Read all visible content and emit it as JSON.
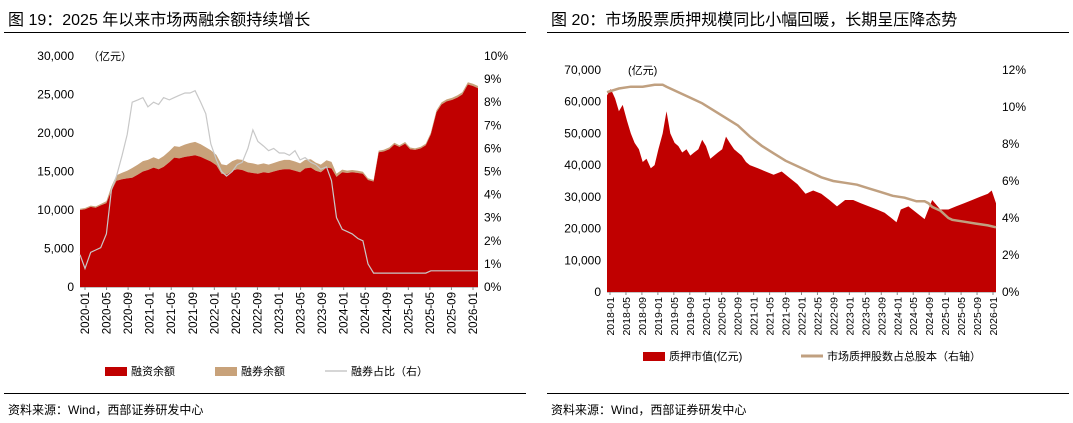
{
  "left": {
    "title": "图 19：2025 年以来市场两融余额持续增长",
    "source": "资料来源：Wind，西部证券研发中心",
    "unit": "（亿元）",
    "legend_margin_finance": "融资余额",
    "legend_short_selling": "融券余额",
    "legend_ratio": "融券占比（右）"
  },
  "right": {
    "title": "图 20：市场股票质押规模同比小幅回暖，长期呈压降态势",
    "source": "资料来源：Wind，西部证券研发中心",
    "unit": "(亿元)",
    "legend_pledge_value": "质押市值(亿元)",
    "legend_pledge_ratio": "市场质押股数占总股本（右轴）"
  },
  "colors": {
    "finance": "#c00000",
    "short": "#c8a27a",
    "ratio_line": "#c8c8c8",
    "pledge_area": "#c00000",
    "pledge_line": "#c0a080"
  },
  "chart_data": [
    {
      "type": "area",
      "title": "图 19：2025 年以来市场两融余额持续增长",
      "ylabel_left": "（亿元）",
      "ylim_left": [
        0,
        30000
      ],
      "yticks_left": [
        0,
        5000,
        10000,
        15000,
        20000,
        25000,
        30000
      ],
      "ytick_labels_left": [
        "0",
        "5,000",
        "10,000",
        "15,000",
        "20,000",
        "25,000",
        "30,000"
      ],
      "ylim_right": [
        0,
        10
      ],
      "yticks_right": [
        0,
        1,
        2,
        3,
        4,
        5,
        6,
        7,
        8,
        9,
        10
      ],
      "ytick_labels_right": [
        "0%",
        "1%",
        "2%",
        "3%",
        "4%",
        "5%",
        "6%",
        "7%",
        "8%",
        "9%",
        "10%"
      ],
      "xlim": [
        2020.0,
        2026.33
      ],
      "x_tick_labels": [
        "2020-01",
        "2020-05",
        "2020-09",
        "2021-01",
        "2021-05",
        "2021-09",
        "2022-01",
        "2022-05",
        "2022-09",
        "2023-01",
        "2023-05",
        "2023-09",
        "2024-01",
        "2024-05",
        "2024-09",
        "2025-01",
        "2025-05",
        "2025-09",
        "2026-01"
      ],
      "legend": [
        "融资余额",
        "融券余额",
        "融券占比（右）"
      ],
      "series": [
        {
          "name": "融资余额",
          "kind": "area",
          "axis": "left",
          "x": [
            2020.0,
            2020.08,
            2020.17,
            2020.25,
            2020.33,
            2020.42,
            2020.5,
            2020.58,
            2020.67,
            2020.75,
            2020.83,
            2020.92,
            2021.0,
            2021.08,
            2021.17,
            2021.25,
            2021.33,
            2021.42,
            2021.5,
            2021.58,
            2021.67,
            2021.75,
            2021.83,
            2021.92,
            2022.0,
            2022.08,
            2022.17,
            2022.25,
            2022.33,
            2022.42,
            2022.5,
            2022.58,
            2022.67,
            2022.75,
            2022.83,
            2022.92,
            2023.0,
            2023.08,
            2023.17,
            2023.25,
            2023.33,
            2023.42,
            2023.5,
            2023.58,
            2023.67,
            2023.75,
            2023.83,
            2023.92,
            2024.0,
            2024.08,
            2024.17,
            2024.25,
            2024.33,
            2024.42,
            2024.5,
            2024.58,
            2024.67,
            2024.75,
            2024.83,
            2024.92,
            2025.0,
            2025.08,
            2025.17,
            2025.25,
            2025.33,
            2025.42,
            2025.5,
            2025.58,
            2025.67,
            2025.75,
            2025.83,
            2025.92,
            2026.0,
            2026.08,
            2026.17,
            2026.25,
            2026.33
          ],
          "values": [
            10000,
            10100,
            10400,
            10300,
            10600,
            10900,
            12500,
            13800,
            14000,
            14100,
            14200,
            14600,
            15000,
            15200,
            15500,
            15300,
            15600,
            16200,
            16800,
            16700,
            16900,
            17000,
            17100,
            16900,
            16600,
            16300,
            15800,
            14700,
            14600,
            15100,
            15300,
            15200,
            14900,
            14800,
            14700,
            14900,
            14800,
            15000,
            15200,
            15300,
            15300,
            15100,
            14900,
            15400,
            15500,
            15100,
            14900,
            15500,
            15400,
            14300,
            14900,
            14800,
            14900,
            14800,
            14700,
            13900,
            13700,
            17500,
            17600,
            17900,
            18500,
            18200,
            18600,
            17900,
            17800,
            18000,
            18400,
            19800,
            22700,
            23700,
            24100,
            24300,
            24600,
            25000,
            26300,
            26100,
            25800
          ]
        },
        {
          "name": "融券余额",
          "kind": "area_stacked",
          "axis": "left",
          "x": [
            2020.0,
            2020.08,
            2020.17,
            2020.25,
            2020.33,
            2020.42,
            2020.5,
            2020.58,
            2020.67,
            2020.75,
            2020.83,
            2020.92,
            2021.0,
            2021.08,
            2021.17,
            2021.25,
            2021.33,
            2021.42,
            2021.5,
            2021.58,
            2021.67,
            2021.75,
            2021.83,
            2021.92,
            2022.0,
            2022.08,
            2022.17,
            2022.25,
            2022.33,
            2022.42,
            2022.5,
            2022.58,
            2022.67,
            2022.75,
            2022.83,
            2022.92,
            2023.0,
            2023.08,
            2023.17,
            2023.25,
            2023.33,
            2023.42,
            2023.5,
            2023.58,
            2023.67,
            2023.75,
            2023.83,
            2023.92,
            2024.0,
            2024.08,
            2024.17,
            2024.25,
            2024.33,
            2024.42,
            2024.5,
            2024.58,
            2024.67,
            2024.75,
            2024.83,
            2024.92,
            2025.0,
            2025.08,
            2025.17,
            2025.25,
            2025.33,
            2025.42,
            2025.5,
            2025.58,
            2025.67,
            2025.75,
            2025.83,
            2025.92,
            2026.0,
            2026.08,
            2026.17,
            2026.25,
            2026.33
          ],
          "values": [
            150,
            160,
            170,
            170,
            180,
            260,
            560,
            700,
            850,
            1000,
            1250,
            1300,
            1350,
            1300,
            1350,
            1300,
            1400,
            1450,
            1500,
            1500,
            1600,
            1700,
            1750,
            1650,
            1550,
            1450,
            1350,
            1250,
            1200,
            1250,
            1300,
            1300,
            1250,
            1250,
            1200,
            1150,
            1100,
            1100,
            1150,
            1200,
            1200,
            1200,
            1150,
            1100,
            1100,
            1050,
            1000,
            950,
            850,
            400,
            350,
            320,
            300,
            290,
            280,
            230,
            200,
            220,
            220,
            230,
            230,
            220,
            230,
            220,
            200,
            210,
            220,
            240,
            260,
            270,
            270,
            280,
            280,
            290,
            300,
            300,
            300
          ]
        },
        {
          "name": "融券占比（右）",
          "kind": "line",
          "axis": "right",
          "x": [
            2020.0,
            2020.08,
            2020.17,
            2020.25,
            2020.33,
            2020.42,
            2020.5,
            2020.58,
            2020.67,
            2020.75,
            2020.83,
            2020.92,
            2021.0,
            2021.08,
            2021.17,
            2021.25,
            2021.33,
            2021.42,
            2021.5,
            2021.58,
            2021.67,
            2021.75,
            2021.83,
            2021.92,
            2022.0,
            2022.08,
            2022.17,
            2022.25,
            2022.33,
            2022.42,
            2022.5,
            2022.58,
            2022.67,
            2022.75,
            2022.83,
            2022.92,
            2023.0,
            2023.08,
            2023.17,
            2023.25,
            2023.33,
            2023.42,
            2023.5,
            2023.58,
            2023.67,
            2023.75,
            2023.83,
            2023.92,
            2024.0,
            2024.08,
            2024.17,
            2024.25,
            2024.33,
            2024.42,
            2024.5,
            2024.58,
            2024.67,
            2024.75,
            2024.83,
            2024.92,
            2025.0,
            2025.08,
            2025.17,
            2025.25,
            2025.33,
            2025.42,
            2025.5,
            2025.58,
            2025.67,
            2025.75,
            2025.83,
            2025.92,
            2026.0,
            2026.08,
            2026.17,
            2026.25,
            2026.33
          ],
          "values": [
            1.4,
            0.8,
            1.5,
            1.6,
            1.7,
            2.3,
            4.2,
            4.8,
            5.7,
            6.6,
            8.0,
            8.1,
            8.2,
            7.8,
            8.0,
            7.9,
            8.2,
            8.1,
            8.2,
            8.3,
            8.4,
            8.4,
            8.5,
            8.0,
            7.5,
            6.2,
            5.5,
            5.0,
            4.8,
            5.0,
            5.3,
            5.4,
            6.0,
            6.8,
            6.3,
            6.1,
            5.9,
            6.0,
            5.8,
            5.8,
            5.7,
            5.9,
            5.5,
            5.6,
            5.4,
            5.3,
            5.1,
            5.2,
            4.6,
            3.0,
            2.5,
            2.4,
            2.3,
            2.1,
            2.0,
            1.0,
            0.6,
            0.6,
            0.6,
            0.6,
            0.6,
            0.6,
            0.6,
            0.6,
            0.6,
            0.6,
            0.6,
            0.7,
            0.7,
            0.7,
            0.7,
            0.7,
            0.7,
            0.7,
            0.7,
            0.7,
            0.7
          ]
        }
      ]
    },
    {
      "type": "area",
      "title": "图 20：市场股票质押规模同比小幅回暖，长期呈压降态势",
      "ylabel_left": "(亿元)",
      "ylim_left": [
        0,
        70000
      ],
      "yticks_left": [
        0,
        10000,
        20000,
        30000,
        40000,
        50000,
        60000,
        70000
      ],
      "ytick_labels_left": [
        "0",
        "10,000",
        "20,000",
        "30,000",
        "40,000",
        "50,000",
        "60,000",
        "70,000"
      ],
      "ylim_right": [
        0,
        12
      ],
      "yticks_right": [
        0,
        2,
        4,
        6,
        8,
        10,
        12
      ],
      "ytick_labels_right": [
        "0%",
        "2%",
        "4%",
        "6%",
        "8%",
        "10%",
        "12%"
      ],
      "xlim": [
        2018.0,
        2026.17
      ],
      "x_tick_labels": [
        "2018-01",
        "2018-05",
        "2018-09",
        "2019-01",
        "2019-05",
        "2019-09",
        "2020-01",
        "2020-05",
        "2020-09",
        "2021-01",
        "2021-05",
        "2021-09",
        "2022-01",
        "2022-05",
        "2022-09",
        "2023-01",
        "2023-05",
        "2023-09",
        "2024-01",
        "2024-05",
        "2024-09",
        "2025-01",
        "2025-05",
        "2025-09",
        "2026-01"
      ],
      "legend": [
        "质押市值(亿元)",
        "市场质押股数占总股本（右轴）"
      ],
      "series": [
        {
          "name": "质押市值(亿元)",
          "kind": "area",
          "axis": "left",
          "x": [
            2018.0,
            2018.08,
            2018.17,
            2018.25,
            2018.33,
            2018.42,
            2018.5,
            2018.58,
            2018.67,
            2018.75,
            2018.83,
            2018.92,
            2019.0,
            2019.08,
            2019.17,
            2019.25,
            2019.33,
            2019.42,
            2019.5,
            2019.58,
            2019.67,
            2019.75,
            2019.83,
            2019.92,
            2020.0,
            2020.08,
            2020.17,
            2020.25,
            2020.33,
            2020.42,
            2020.5,
            2020.58,
            2020.67,
            2020.75,
            2020.83,
            2020.92,
            2021.0,
            2021.17,
            2021.33,
            2021.5,
            2021.67,
            2021.83,
            2022.0,
            2022.17,
            2022.33,
            2022.5,
            2022.67,
            2022.83,
            2023.0,
            2023.17,
            2023.33,
            2023.5,
            2023.67,
            2023.83,
            2024.0,
            2024.08,
            2024.17,
            2024.33,
            2024.5,
            2024.67,
            2024.75,
            2024.83,
            2025.0,
            2025.17,
            2025.33,
            2025.5,
            2025.67,
            2025.83,
            2026.0,
            2026.08,
            2026.17
          ],
          "values": [
            62000,
            64000,
            61000,
            57000,
            59000,
            54000,
            50000,
            47000,
            45000,
            41000,
            42000,
            39000,
            40000,
            45000,
            50000,
            57000,
            50000,
            47000,
            46000,
            44000,
            45000,
            43000,
            44000,
            45000,
            48000,
            46000,
            42000,
            43000,
            44000,
            45000,
            49000,
            47000,
            45000,
            44000,
            43000,
            41000,
            40000,
            39000,
            38000,
            37000,
            38000,
            36000,
            34000,
            31000,
            32000,
            31000,
            29000,
            27000,
            29000,
            29000,
            28000,
            27000,
            26000,
            25000,
            23000,
            22000,
            26000,
            27000,
            25000,
            23000,
            26000,
            29000,
            26000,
            26000,
            27000,
            28000,
            29000,
            30000,
            31000,
            32000,
            28000
          ]
        },
        {
          "name": "市场质押股数占总股本（右轴）",
          "kind": "line",
          "axis": "right",
          "x": [
            2018.0,
            2018.25,
            2018.5,
            2018.75,
            2019.0,
            2019.17,
            2019.25,
            2019.5,
            2019.75,
            2020.0,
            2020.25,
            2020.5,
            2020.75,
            2021.0,
            2021.25,
            2021.5,
            2021.75,
            2022.0,
            2022.25,
            2022.5,
            2022.75,
            2023.0,
            2023.25,
            2023.5,
            2023.75,
            2024.0,
            2024.25,
            2024.5,
            2024.67,
            2024.75,
            2024.83,
            2025.0,
            2025.17,
            2025.25,
            2025.5,
            2025.75,
            2026.0,
            2026.17
          ],
          "values": [
            10.8,
            11.0,
            11.1,
            11.1,
            11.2,
            11.2,
            11.1,
            10.8,
            10.5,
            10.2,
            9.8,
            9.4,
            9.0,
            8.4,
            7.9,
            7.5,
            7.1,
            6.8,
            6.5,
            6.2,
            6.0,
            5.9,
            5.8,
            5.6,
            5.4,
            5.2,
            5.1,
            4.9,
            4.9,
            4.8,
            4.6,
            4.4,
            4.0,
            3.9,
            3.8,
            3.7,
            3.6,
            3.5
          ]
        }
      ]
    }
  ]
}
